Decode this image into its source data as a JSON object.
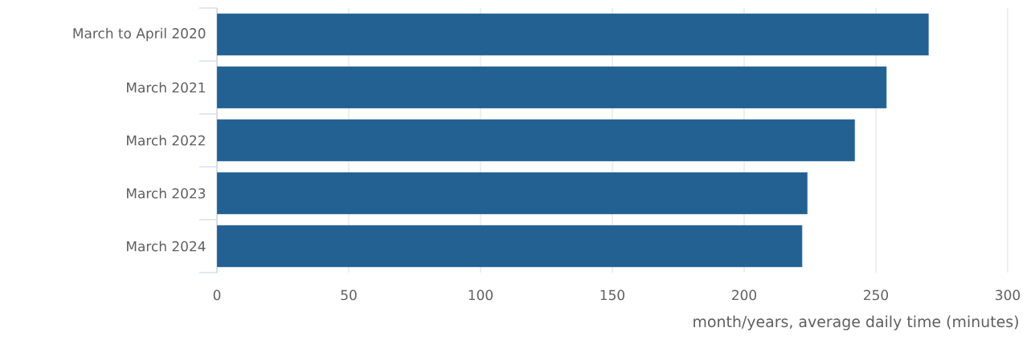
{
  "chart_data": {
    "type": "bar",
    "orientation": "horizontal",
    "categories": [
      "March to April 2020",
      "March 2021",
      "March 2022",
      "March 2023",
      "March 2024"
    ],
    "values": [
      270,
      254,
      242,
      224,
      222
    ],
    "color": "#226192",
    "xlim": [
      0,
      300
    ],
    "xticks": [
      0,
      50,
      100,
      150,
      200,
      250,
      300
    ],
    "xlabel": "month/years, average daily time (minutes)",
    "grid": "x"
  }
}
